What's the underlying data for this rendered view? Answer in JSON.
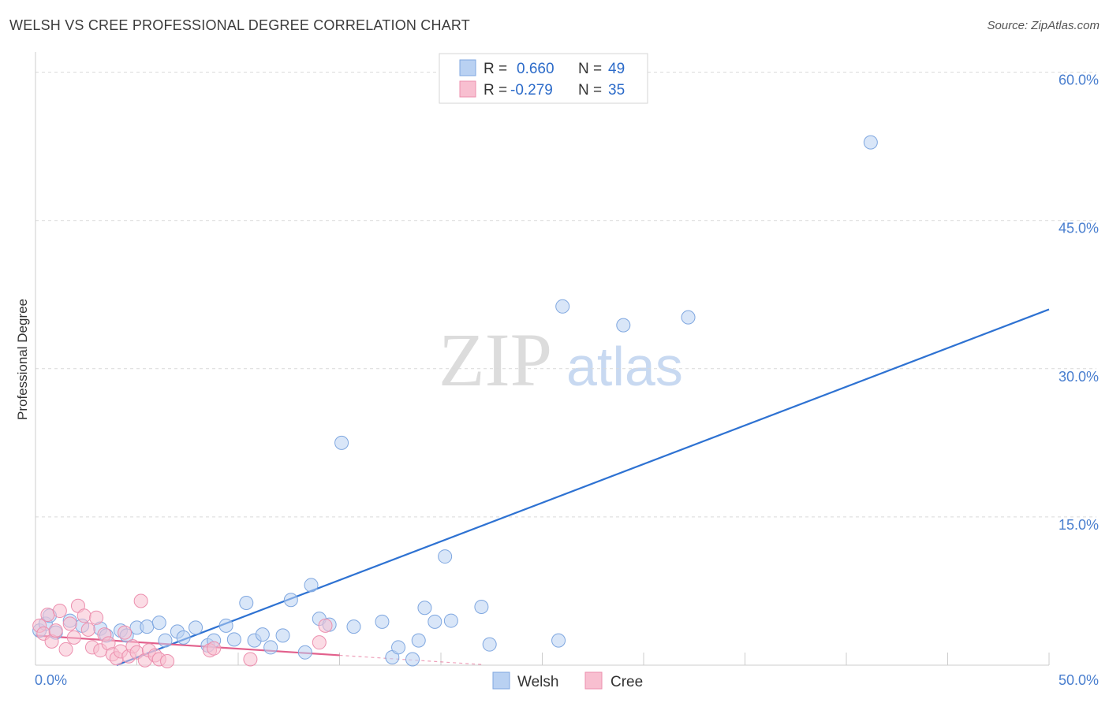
{
  "title": "WELSH VS CREE PROFESSIONAL DEGREE CORRELATION CHART",
  "source": "Source: ZipAtlas.com",
  "watermark": {
    "zip": "ZIP",
    "atlas": "atlas"
  },
  "colors": {
    "welsh_fill": "#b9d1f2",
    "welsh_stroke": "#7fa7e0",
    "welsh_line": "#2e72d2",
    "cree_fill": "#f8bfd0",
    "cree_stroke": "#ec8fae",
    "cree_line": "#e2608c",
    "grid": "#d9d9d9",
    "tick_text": "#4a7fcf"
  },
  "legend_top": [
    {
      "series": "Welsh",
      "r_label": "R =",
      "r_value": "0.660",
      "n_label": "N =",
      "n_value": "49"
    },
    {
      "series": "Cree",
      "r_label": "R =",
      "r_value": "-0.279",
      "n_label": "N =",
      "n_value": "35"
    }
  ],
  "chart_data": {
    "type": "scatter",
    "ylabel": "Professional Degree",
    "x_ticks": [
      "0.0%",
      "50.0%"
    ],
    "y_ticks": [
      "15.0%",
      "30.0%",
      "45.0%",
      "60.0%"
    ],
    "xlim": [
      0,
      50
    ],
    "ylim": [
      0,
      63
    ],
    "grid": true,
    "legend_position": "top-center",
    "series": [
      {
        "name": "Welsh",
        "trendline": {
          "x": [
            4.0,
            50.0
          ],
          "y": [
            0.0,
            36.0
          ]
        },
        "points": [
          [
            0.2,
            3.5
          ],
          [
            0.5,
            4.2
          ],
          [
            0.7,
            5.0
          ],
          [
            1.0,
            3.3
          ],
          [
            1.7,
            4.5
          ],
          [
            2.3,
            4.0
          ],
          [
            3.2,
            3.7
          ],
          [
            3.5,
            3.0
          ],
          [
            4.2,
            3.5
          ],
          [
            4.5,
            3.0
          ],
          [
            5.0,
            3.8
          ],
          [
            5.5,
            3.9
          ],
          [
            6.1,
            4.3
          ],
          [
            6.4,
            2.5
          ],
          [
            7.0,
            3.4
          ],
          [
            7.3,
            2.8
          ],
          [
            7.9,
            3.8
          ],
          [
            8.5,
            2.0
          ],
          [
            8.8,
            2.5
          ],
          [
            9.4,
            4.0
          ],
          [
            9.8,
            2.6
          ],
          [
            10.4,
            6.3
          ],
          [
            10.8,
            2.5
          ],
          [
            11.2,
            3.1
          ],
          [
            11.6,
            1.8
          ],
          [
            12.2,
            3.0
          ],
          [
            12.6,
            6.6
          ],
          [
            13.3,
            1.3
          ],
          [
            13.6,
            8.1
          ],
          [
            14.0,
            4.7
          ],
          [
            14.5,
            4.1
          ],
          [
            15.1,
            22.5
          ],
          [
            15.7,
            3.9
          ],
          [
            17.1,
            4.4
          ],
          [
            17.6,
            0.8
          ],
          [
            17.9,
            1.8
          ],
          [
            18.6,
            0.6
          ],
          [
            18.9,
            2.5
          ],
          [
            19.2,
            5.8
          ],
          [
            19.7,
            4.4
          ],
          [
            20.2,
            11.0
          ],
          [
            20.5,
            4.5
          ],
          [
            22.0,
            5.9
          ],
          [
            22.4,
            2.1
          ],
          [
            25.8,
            2.5
          ],
          [
            26.0,
            36.3
          ],
          [
            29.0,
            34.4
          ],
          [
            32.2,
            35.2
          ],
          [
            41.2,
            52.9
          ]
        ]
      },
      {
        "name": "Cree",
        "trendline": {
          "x": [
            0.0,
            15.0
          ],
          "y": [
            3.0,
            1.0
          ]
        },
        "points": [
          [
            0.2,
            4.0
          ],
          [
            0.4,
            3.2
          ],
          [
            0.6,
            5.1
          ],
          [
            0.8,
            2.4
          ],
          [
            1.0,
            3.5
          ],
          [
            1.2,
            5.5
          ],
          [
            1.5,
            1.6
          ],
          [
            1.7,
            4.2
          ],
          [
            1.9,
            2.8
          ],
          [
            2.1,
            6.0
          ],
          [
            2.4,
            5.0
          ],
          [
            2.6,
            3.6
          ],
          [
            2.8,
            1.8
          ],
          [
            3.0,
            4.8
          ],
          [
            3.2,
            1.5
          ],
          [
            3.4,
            3.1
          ],
          [
            3.6,
            2.2
          ],
          [
            3.8,
            1.1
          ],
          [
            4.0,
            0.7
          ],
          [
            4.2,
            1.4
          ],
          [
            4.4,
            3.3
          ],
          [
            4.6,
            0.9
          ],
          [
            4.8,
            1.9
          ],
          [
            5.0,
            1.3
          ],
          [
            5.2,
            6.5
          ],
          [
            5.4,
            0.5
          ],
          [
            5.6,
            1.5
          ],
          [
            5.9,
            1.0
          ],
          [
            6.1,
            0.6
          ],
          [
            6.5,
            0.4
          ],
          [
            8.6,
            1.5
          ],
          [
            8.8,
            1.7
          ],
          [
            10.6,
            0.6
          ],
          [
            14.0,
            2.3
          ],
          [
            14.3,
            4.0
          ]
        ]
      }
    ]
  }
}
